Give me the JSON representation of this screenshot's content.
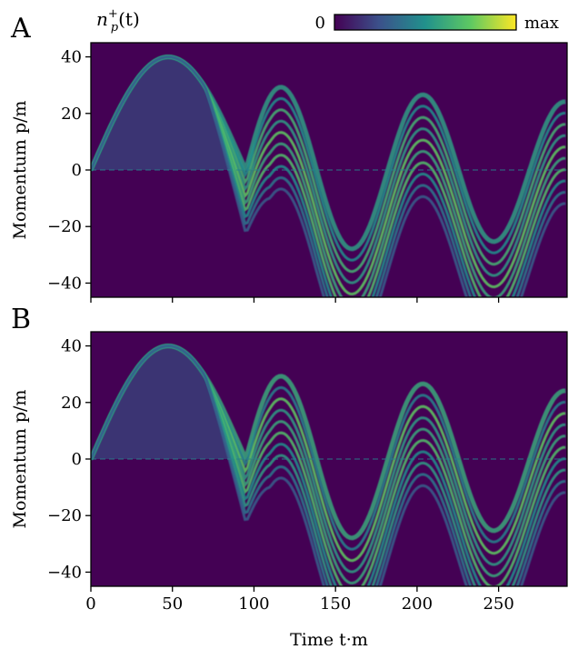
{
  "colorbar": {
    "label_base": "n",
    "label_sub": "p",
    "label_sup": "+",
    "label_arg": "(t)",
    "min_label": "0",
    "max_label": "max",
    "colors": [
      "#440154",
      "#3b528b",
      "#21918c",
      "#5ec962",
      "#fde725"
    ]
  },
  "background_color": "#440154",
  "chart_data": [
    {
      "type": "heatmap",
      "panel_label": "A",
      "ylabel": "Momentum p/m",
      "xlim": [
        0,
        292
      ],
      "ylim": [
        -45,
        45
      ],
      "yticks": [
        {
          "value": 40,
          "label": "40"
        },
        {
          "value": 20,
          "label": "20"
        },
        {
          "value": 0,
          "label": "0"
        },
        {
          "value": -20,
          "label": "−20"
        },
        {
          "value": -40,
          "label": "−40"
        }
      ],
      "xticks": [
        0,
        50,
        100,
        150,
        200,
        250
      ],
      "show_xticklabels": false,
      "bands": [
        {
          "offset": 0,
          "intensity": 0.55
        },
        {
          "offset": -4,
          "intensity": 0.5
        },
        {
          "offset": -8,
          "intensity": 0.65
        },
        {
          "offset": -12,
          "intensity": 0.55
        },
        {
          "offset": -16,
          "intensity": 0.75
        },
        {
          "offset": -20,
          "intensity": 0.6
        },
        {
          "offset": -24,
          "intensity": 0.7
        },
        {
          "offset": -28,
          "intensity": 0.5
        },
        {
          "offset": -32,
          "intensity": 0.4
        },
        {
          "offset": -36,
          "intensity": 0.3
        }
      ]
    },
    {
      "type": "heatmap",
      "panel_label": "B",
      "ylabel": "Momentum p/m",
      "xlabel": "Time t·m",
      "xlim": [
        0,
        292
      ],
      "ylim": [
        -45,
        45
      ],
      "yticks": [
        {
          "value": 40,
          "label": "40"
        },
        {
          "value": 20,
          "label": "20"
        },
        {
          "value": 0,
          "label": "0"
        },
        {
          "value": -20,
          "label": "−20"
        },
        {
          "value": -40,
          "label": "−40"
        }
      ],
      "xticks": [
        {
          "value": 0,
          "label": "0"
        },
        {
          "value": 50,
          "label": "50"
        },
        {
          "value": 100,
          "label": "100"
        },
        {
          "value": 150,
          "label": "150"
        },
        {
          "value": 200,
          "label": "200"
        },
        {
          "value": 250,
          "label": "250"
        }
      ],
      "show_xticklabels": true,
      "bands": [
        {
          "offset": 0,
          "intensity": 0.6
        },
        {
          "offset": -4,
          "intensity": 0.45
        },
        {
          "offset": -8,
          "intensity": 0.75
        },
        {
          "offset": -12,
          "intensity": 0.55
        },
        {
          "offset": -16,
          "intensity": 0.6
        },
        {
          "offset": -20,
          "intensity": 0.7
        },
        {
          "offset": -24,
          "intensity": 0.5
        },
        {
          "offset": -28,
          "intensity": 0.55
        },
        {
          "offset": -32,
          "intensity": 0.4
        },
        {
          "offset": -36,
          "intensity": 0.3
        }
      ]
    }
  ]
}
